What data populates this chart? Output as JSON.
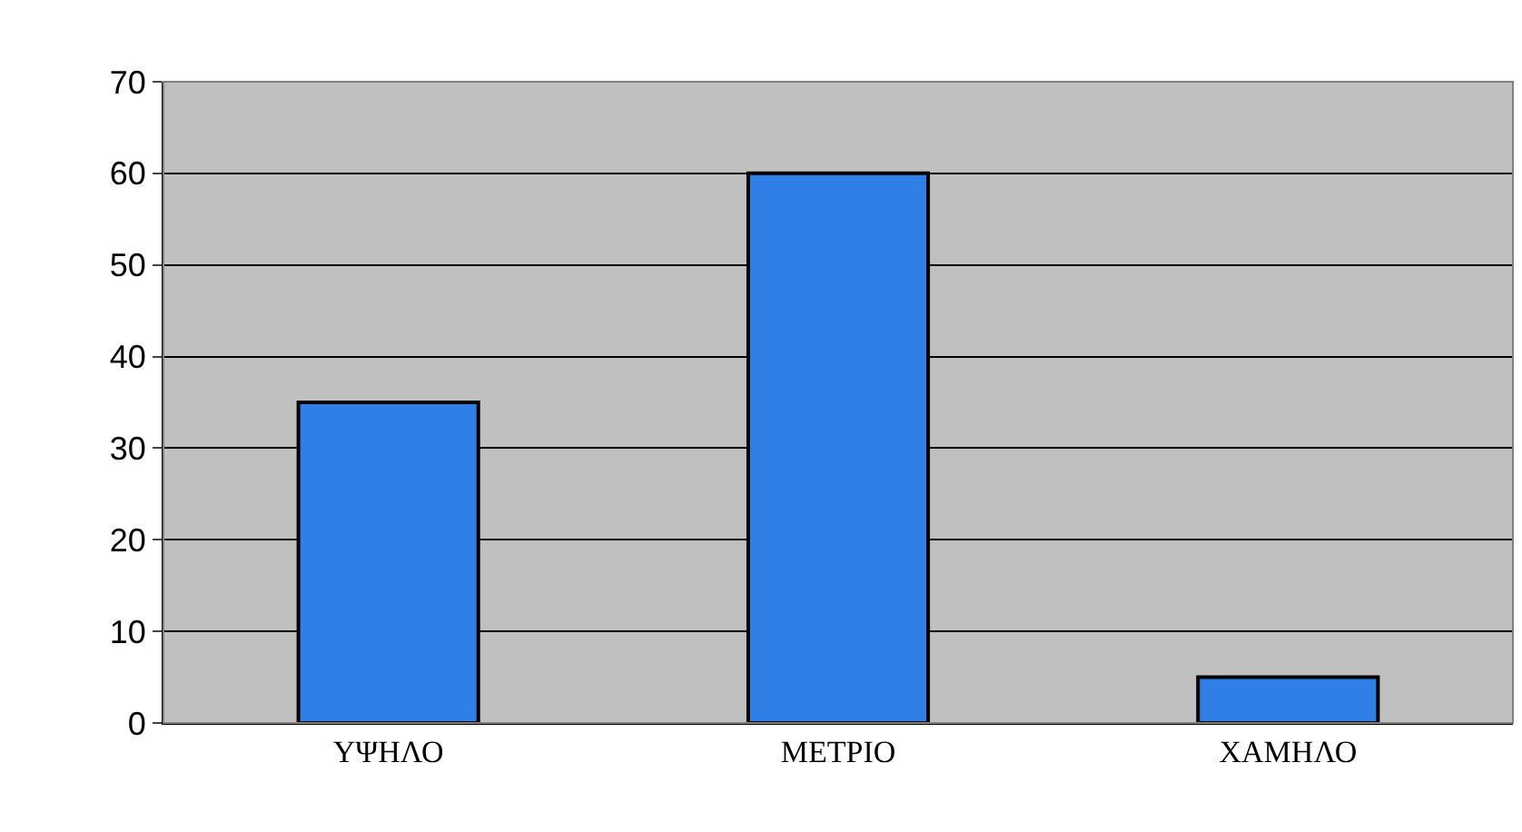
{
  "chart_data": {
    "type": "bar",
    "categories": [
      "ΥΨΗΛΟ",
      "ΜΕΤΡΙΟ",
      "ΧΑΜΗΛΟ"
    ],
    "values": [
      35,
      60,
      5
    ],
    "color": "#2f7fe6",
    "ylim": [
      0,
      70
    ],
    "yticks": [
      0,
      10,
      20,
      30,
      40,
      50,
      60,
      70
    ],
    "grid": "y"
  }
}
